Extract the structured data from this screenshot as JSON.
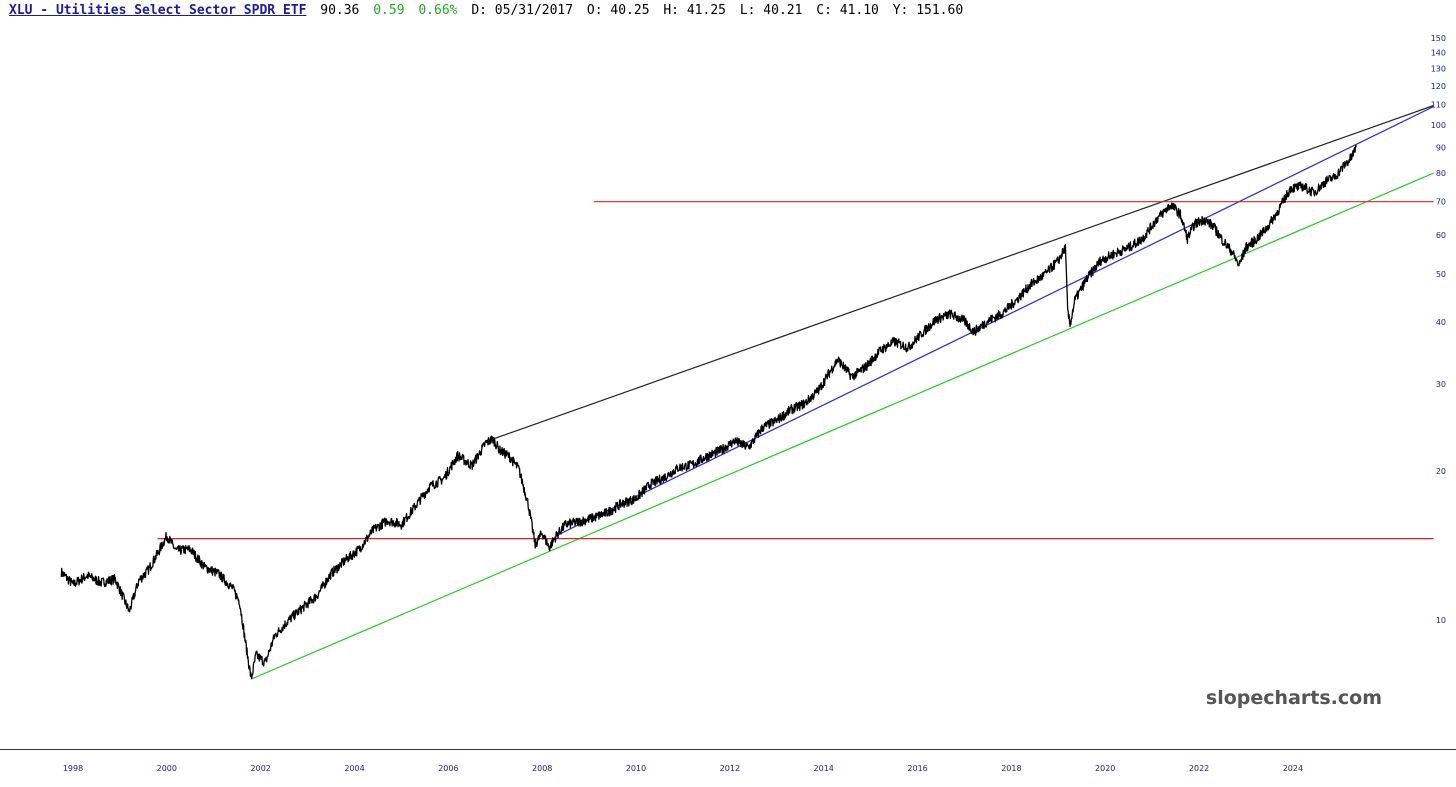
{
  "header": {
    "symbol_title": "XLU - Utilities Select Sector SPDR ETF",
    "last": "90.36",
    "change": "0.59",
    "change_pct": "0.66%",
    "date": "D: 05/31/2017",
    "open": "O: 40.25",
    "high": "H: 41.25",
    "low": "L: 40.21",
    "close": "C: 41.10",
    "y": "Y: 151.60"
  },
  "watermark": "slopecharts.com",
  "colors": {
    "axis_text": "#1a1aa8",
    "price": "#000000",
    "change": "#22aa22",
    "resistance_line": "#222222",
    "channel_blue": "#2a2ae0",
    "support_green": "#22cc22",
    "horizontal_red": "#dd2222"
  },
  "chart_data": {
    "type": "line",
    "title": "XLU - Utilities Select Sector SPDR ETF",
    "yscale": "log",
    "ylim": [
      6.3,
      160
    ],
    "xlim": [
      1997.7,
      2027.0
    ],
    "y_ticks": [
      10,
      20,
      30,
      40,
      50,
      60,
      70,
      80,
      90,
      100,
      110,
      120,
      130,
      140,
      150
    ],
    "x_ticks": [
      "1998",
      "2000",
      "2002",
      "2004",
      "2006",
      "2008",
      "2010",
      "2012",
      "2014",
      "2016",
      "2018",
      "2020",
      "2022",
      "2024"
    ],
    "grid": false,
    "series": [
      {
        "type": "price",
        "x": [
          1997.75,
          1998.0,
          1998.3,
          1998.6,
          1998.9,
          1999.2,
          1999.4,
          1999.6,
          1999.8,
          2000.0,
          2000.2,
          2000.5,
          2000.8,
          2001.1,
          2001.4,
          2001.55,
          2001.7,
          2001.8,
          2001.9,
          2002.1,
          2002.3,
          2002.6,
          2002.9,
          2003.2,
          2003.5,
          2003.8,
          2004.1,
          2004.4,
          2004.7,
          2005.0,
          2005.3,
          2005.6,
          2005.9,
          2006.2,
          2006.5,
          2006.8,
          2006.95,
          2007.1,
          2007.3,
          2007.5,
          2007.7,
          2007.85,
          2008.0,
          2008.15,
          2008.3,
          2008.5,
          2008.8,
          2009.1,
          2009.4,
          2009.7,
          2010.0,
          2010.3,
          2010.6,
          2010.9,
          2011.2,
          2011.5,
          2011.8,
          2012.1,
          2012.4,
          2012.7,
          2013.0,
          2013.3,
          2013.6,
          2013.9,
          2014.1,
          2014.3,
          2014.6,
          2014.9,
          2015.2,
          2015.5,
          2015.8,
          2016.1,
          2016.4,
          2016.7,
          2017.0,
          2017.2,
          2017.5,
          2017.8,
          2018.1,
          2018.4,
          2018.7,
          2019.0,
          2019.15,
          2019.2,
          2019.25,
          2019.35,
          2019.6,
          2019.9,
          2020.2,
          2020.5,
          2020.8,
          2021.1,
          2021.4,
          2021.6,
          2021.75,
          2021.9,
          2022.1,
          2022.3,
          2022.5,
          2022.7,
          2022.85,
          2023.0,
          2023.2,
          2023.45,
          2023.7,
          2023.95,
          2024.2,
          2024.45,
          2024.7,
          2024.9,
          2025.1,
          2025.25,
          2025.35
        ],
        "y": [
          12.5,
          11.8,
          12.3,
          11.9,
          12.1,
          10.4,
          12.0,
          12.6,
          13.6,
          14.8,
          13.8,
          13.9,
          12.8,
          12.4,
          11.6,
          10.9,
          8.7,
          7.6,
          8.5,
          8.2,
          9.3,
          10.0,
          10.6,
          11.2,
          12.4,
          13.2,
          13.9,
          15.2,
          15.9,
          15.6,
          17.0,
          18.6,
          19.3,
          21.5,
          20.5,
          22.8,
          23.2,
          22.0,
          21.4,
          20.2,
          17.2,
          14.2,
          15.0,
          14.0,
          14.8,
          15.6,
          15.8,
          16.1,
          16.5,
          17.2,
          17.6,
          18.8,
          19.4,
          20.3,
          20.6,
          21.4,
          22.0,
          23.0,
          22.3,
          24.5,
          25.3,
          26.6,
          27.4,
          29.2,
          31.4,
          33.6,
          31.0,
          32.5,
          35.0,
          36.5,
          35.5,
          38.0,
          40.5,
          41.5,
          40.2,
          38.2,
          40.2,
          41.6,
          44.2,
          47.5,
          49.8,
          53.2,
          56.5,
          42.0,
          39.5,
          44.2,
          48.8,
          53.2,
          55.0,
          56.5,
          59.0,
          64.6,
          69.0,
          66.0,
          59.0,
          63.0,
          64.5,
          62.5,
          58.5,
          55.5,
          52.0,
          56.6,
          58.5,
          62.0,
          67.5,
          74.5,
          75.2,
          73.0,
          77.0,
          78.6,
          83.0,
          86.0,
          90.36
        ]
      }
    ],
    "annotations": [
      {
        "type": "trendline",
        "name": "upper resistance",
        "color": "#222222",
        "x1": 2006.95,
        "y1": 23.2,
        "x2": 2027.0,
        "y2": 109.5
      },
      {
        "type": "trendline",
        "name": "blue channel",
        "color": "#2a2ae0",
        "x1": 2008.3,
        "y1": 14.8,
        "x2": 2027.0,
        "y2": 109.0
      },
      {
        "type": "trendline",
        "name": "green support",
        "color": "#22cc22",
        "x1": 2001.8,
        "y1": 7.6,
        "x2": 2027.0,
        "y2": 80.0
      },
      {
        "type": "hline",
        "name": "red level 70",
        "color": "#dd2222",
        "x1": 2009.1,
        "x2": 2027.0,
        "y": 70.0
      },
      {
        "type": "hline",
        "name": "red level 14.6",
        "color": "#dd2222",
        "x1": 1999.8,
        "x2": 2027.0,
        "y": 14.6
      }
    ]
  }
}
